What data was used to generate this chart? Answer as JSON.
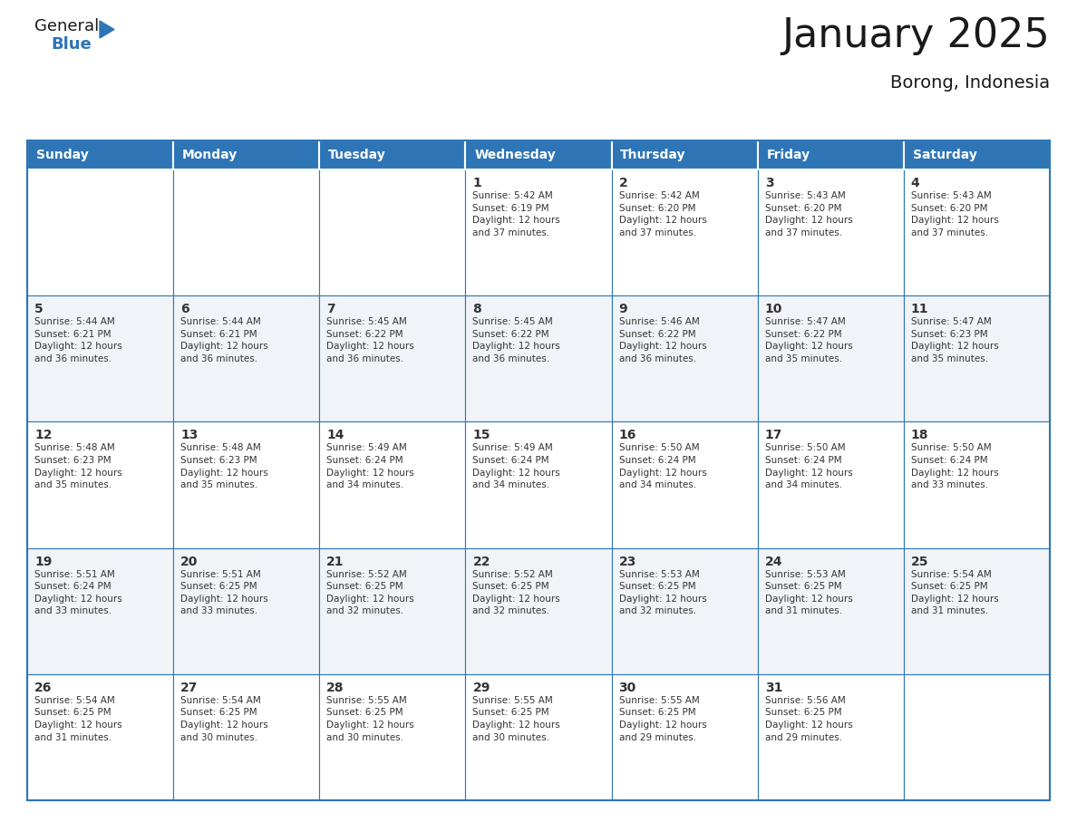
{
  "title": "January 2025",
  "subtitle": "Borong, Indonesia",
  "header_color": "#2E75B6",
  "header_text_color": "#FFFFFF",
  "cell_bg_even": "#FFFFFF",
  "cell_bg_odd": "#F0F4F8",
  "border_color": "#2E75B6",
  "text_color": "#333333",
  "day_headers": [
    "Sunday",
    "Monday",
    "Tuesday",
    "Wednesday",
    "Thursday",
    "Friday",
    "Saturday"
  ],
  "weeks": [
    [
      {
        "day": "",
        "info": ""
      },
      {
        "day": "",
        "info": ""
      },
      {
        "day": "",
        "info": ""
      },
      {
        "day": "1",
        "info": "Sunrise: 5:42 AM\nSunset: 6:19 PM\nDaylight: 12 hours\nand 37 minutes."
      },
      {
        "day": "2",
        "info": "Sunrise: 5:42 AM\nSunset: 6:20 PM\nDaylight: 12 hours\nand 37 minutes."
      },
      {
        "day": "3",
        "info": "Sunrise: 5:43 AM\nSunset: 6:20 PM\nDaylight: 12 hours\nand 37 minutes."
      },
      {
        "day": "4",
        "info": "Sunrise: 5:43 AM\nSunset: 6:20 PM\nDaylight: 12 hours\nand 37 minutes."
      }
    ],
    [
      {
        "day": "5",
        "info": "Sunrise: 5:44 AM\nSunset: 6:21 PM\nDaylight: 12 hours\nand 36 minutes."
      },
      {
        "day": "6",
        "info": "Sunrise: 5:44 AM\nSunset: 6:21 PM\nDaylight: 12 hours\nand 36 minutes."
      },
      {
        "day": "7",
        "info": "Sunrise: 5:45 AM\nSunset: 6:22 PM\nDaylight: 12 hours\nand 36 minutes."
      },
      {
        "day": "8",
        "info": "Sunrise: 5:45 AM\nSunset: 6:22 PM\nDaylight: 12 hours\nand 36 minutes."
      },
      {
        "day": "9",
        "info": "Sunrise: 5:46 AM\nSunset: 6:22 PM\nDaylight: 12 hours\nand 36 minutes."
      },
      {
        "day": "10",
        "info": "Sunrise: 5:47 AM\nSunset: 6:22 PM\nDaylight: 12 hours\nand 35 minutes."
      },
      {
        "day": "11",
        "info": "Sunrise: 5:47 AM\nSunset: 6:23 PM\nDaylight: 12 hours\nand 35 minutes."
      }
    ],
    [
      {
        "day": "12",
        "info": "Sunrise: 5:48 AM\nSunset: 6:23 PM\nDaylight: 12 hours\nand 35 minutes."
      },
      {
        "day": "13",
        "info": "Sunrise: 5:48 AM\nSunset: 6:23 PM\nDaylight: 12 hours\nand 35 minutes."
      },
      {
        "day": "14",
        "info": "Sunrise: 5:49 AM\nSunset: 6:24 PM\nDaylight: 12 hours\nand 34 minutes."
      },
      {
        "day": "15",
        "info": "Sunrise: 5:49 AM\nSunset: 6:24 PM\nDaylight: 12 hours\nand 34 minutes."
      },
      {
        "day": "16",
        "info": "Sunrise: 5:50 AM\nSunset: 6:24 PM\nDaylight: 12 hours\nand 34 minutes."
      },
      {
        "day": "17",
        "info": "Sunrise: 5:50 AM\nSunset: 6:24 PM\nDaylight: 12 hours\nand 34 minutes."
      },
      {
        "day": "18",
        "info": "Sunrise: 5:50 AM\nSunset: 6:24 PM\nDaylight: 12 hours\nand 33 minutes."
      }
    ],
    [
      {
        "day": "19",
        "info": "Sunrise: 5:51 AM\nSunset: 6:24 PM\nDaylight: 12 hours\nand 33 minutes."
      },
      {
        "day": "20",
        "info": "Sunrise: 5:51 AM\nSunset: 6:25 PM\nDaylight: 12 hours\nand 33 minutes."
      },
      {
        "day": "21",
        "info": "Sunrise: 5:52 AM\nSunset: 6:25 PM\nDaylight: 12 hours\nand 32 minutes."
      },
      {
        "day": "22",
        "info": "Sunrise: 5:52 AM\nSunset: 6:25 PM\nDaylight: 12 hours\nand 32 minutes."
      },
      {
        "day": "23",
        "info": "Sunrise: 5:53 AM\nSunset: 6:25 PM\nDaylight: 12 hours\nand 32 minutes."
      },
      {
        "day": "24",
        "info": "Sunrise: 5:53 AM\nSunset: 6:25 PM\nDaylight: 12 hours\nand 31 minutes."
      },
      {
        "day": "25",
        "info": "Sunrise: 5:54 AM\nSunset: 6:25 PM\nDaylight: 12 hours\nand 31 minutes."
      }
    ],
    [
      {
        "day": "26",
        "info": "Sunrise: 5:54 AM\nSunset: 6:25 PM\nDaylight: 12 hours\nand 31 minutes."
      },
      {
        "day": "27",
        "info": "Sunrise: 5:54 AM\nSunset: 6:25 PM\nDaylight: 12 hours\nand 30 minutes."
      },
      {
        "day": "28",
        "info": "Sunrise: 5:55 AM\nSunset: 6:25 PM\nDaylight: 12 hours\nand 30 minutes."
      },
      {
        "day": "29",
        "info": "Sunrise: 5:55 AM\nSunset: 6:25 PM\nDaylight: 12 hours\nand 30 minutes."
      },
      {
        "day": "30",
        "info": "Sunrise: 5:55 AM\nSunset: 6:25 PM\nDaylight: 12 hours\nand 29 minutes."
      },
      {
        "day": "31",
        "info": "Sunrise: 5:56 AM\nSunset: 6:25 PM\nDaylight: 12 hours\nand 29 minutes."
      },
      {
        "day": "",
        "info": ""
      }
    ]
  ],
  "logo_text1": "General",
  "logo_text2": "Blue",
  "logo_text1_color": "#1a1a1a",
  "logo_text2_color": "#2E75B6",
  "logo_triangle_color": "#2E75B6",
  "title_fontsize": 32,
  "subtitle_fontsize": 14,
  "day_header_fontsize": 10,
  "day_num_fontsize": 10,
  "info_fontsize": 7.5
}
